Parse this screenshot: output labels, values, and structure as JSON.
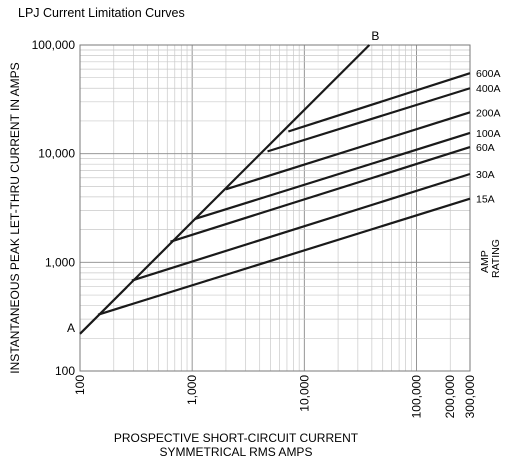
{
  "chart_data": {
    "type": "line",
    "title": "LPJ Current Limitation Curves",
    "xlabel": [
      "PROSPECTIVE SHORT-CIRCUIT CURRENT",
      "SYMMETRICAL RMS AMPS"
    ],
    "ylabel": "INSTANTANEOUS PEAK LET-THRU CURRENT IN AMPS",
    "x_scale": "log",
    "y_scale": "log",
    "xlim": [
      100,
      300000
    ],
    "ylim": [
      100,
      100000
    ],
    "x_ticks": [
      {
        "value": 100,
        "label": "100"
      },
      {
        "value": 1000,
        "label": "1,000"
      },
      {
        "value": 10000,
        "label": "10,000"
      },
      {
        "value": 100000,
        "label": "100,000"
      },
      {
        "value": 200000,
        "label": "200,000"
      },
      {
        "value": 300000,
        "label": "300,000"
      }
    ],
    "y_ticks": [
      {
        "value": 100,
        "label": "100"
      },
      {
        "value": 1000,
        "label": "1,000"
      },
      {
        "value": 10000,
        "label": "10,000"
      },
      {
        "value": 100000,
        "label": "100,000"
      }
    ],
    "grid": true,
    "rating_axis_label": [
      "AMP",
      "RATING"
    ],
    "reference_line": {
      "start_label": "A",
      "end_label": "B",
      "points": [
        [
          100,
          220
        ],
        [
          38000,
          100000
        ]
      ]
    },
    "series": [
      {
        "name": "600A",
        "points": [
          [
            7200,
            16000
          ],
          [
            300000,
            55000
          ]
        ]
      },
      {
        "name": "400A",
        "points": [
          [
            4700,
            10500
          ],
          [
            300000,
            40000
          ]
        ]
      },
      {
        "name": "200A",
        "points": [
          [
            2000,
            4700
          ],
          [
            300000,
            24000
          ]
        ]
      },
      {
        "name": "100A",
        "points": [
          [
            1050,
            2500
          ],
          [
            300000,
            15500
          ]
        ]
      },
      {
        "name": "60A",
        "points": [
          [
            640,
            1550
          ],
          [
            300000,
            11500
          ]
        ]
      },
      {
        "name": "30A",
        "points": [
          [
            290,
            680
          ],
          [
            300000,
            6500
          ]
        ]
      },
      {
        "name": "15A",
        "points": [
          [
            145,
            330
          ],
          [
            300000,
            3850
          ]
        ]
      }
    ]
  }
}
